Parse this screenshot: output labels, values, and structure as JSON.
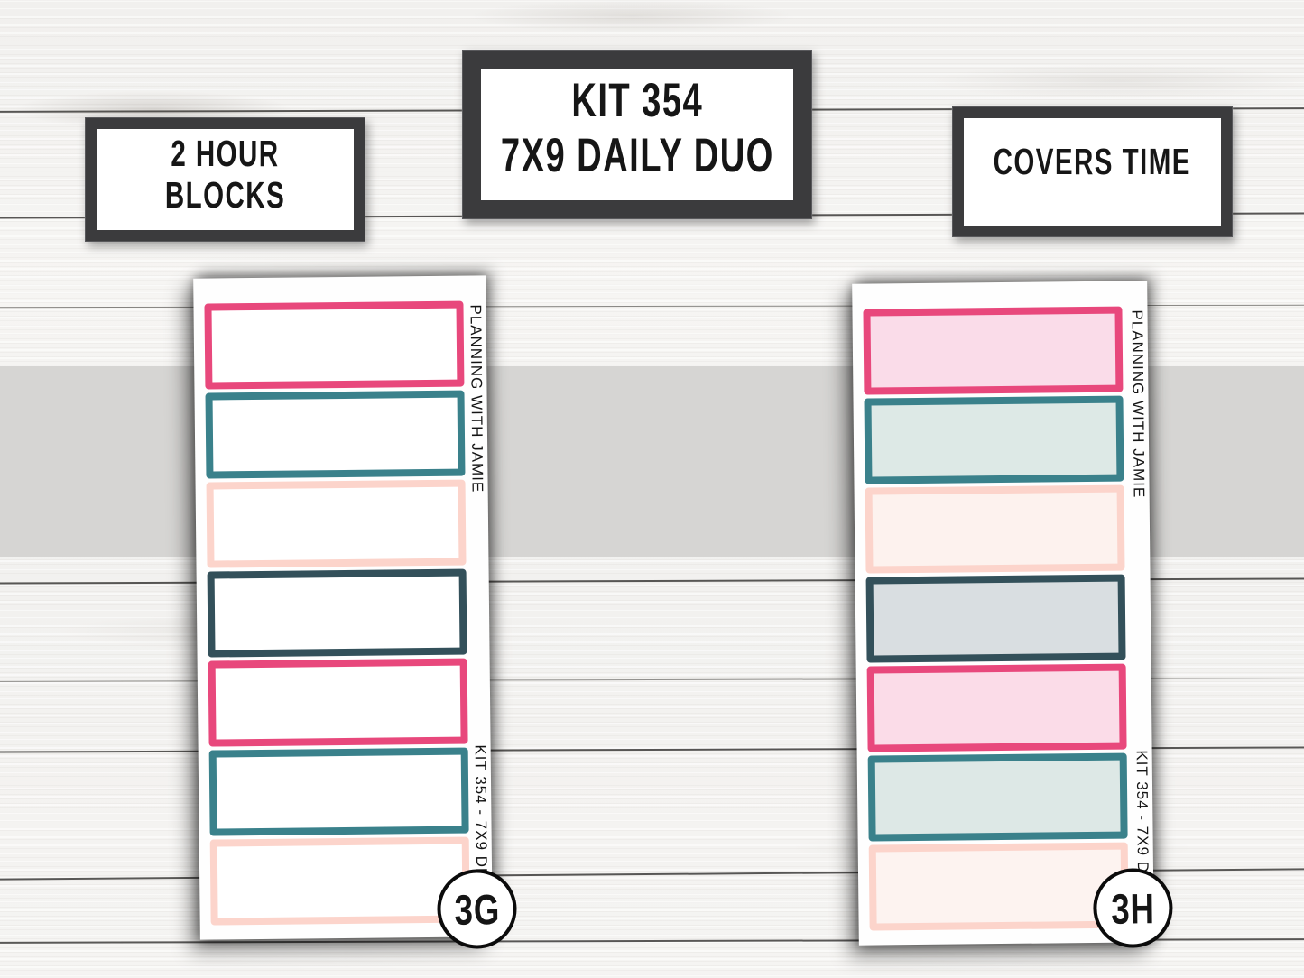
{
  "signs": {
    "left": {
      "line1": "2 HOUR",
      "line2": "BLOCKS"
    },
    "center": {
      "line1": "KIT 354",
      "line2": "7X9 DAILY DUO"
    },
    "right": {
      "line1": "COVERS TIME"
    }
  },
  "palette": {
    "pink": "#e8487c",
    "teal": "#3a818b",
    "peach": "#fcd4cb",
    "slate": "#33505a",
    "gray_band": "#d6d5d3",
    "frame_dark": "#3b3b3d"
  },
  "sheets": [
    {
      "badge": "3G",
      "brand_text": "PLANNING WITH JAMIE",
      "kit_text": "KIT 354 - 7X9 DD",
      "boxes": [
        {
          "border": "#e8487c",
          "fill": "#ffffff"
        },
        {
          "border": "#3a818b",
          "fill": "#ffffff"
        },
        {
          "border": "#fcd4cb",
          "fill": "#ffffff"
        },
        {
          "border": "#33505a",
          "fill": "#ffffff"
        },
        {
          "border": "#e8487c",
          "fill": "#ffffff"
        },
        {
          "border": "#3a818b",
          "fill": "#ffffff"
        },
        {
          "border": "#fcd4cb",
          "fill": "#ffffff"
        }
      ]
    },
    {
      "badge": "3H",
      "brand_text": "PLANNING WITH JAMIE",
      "kit_text": "KIT 354 - 7X9 DD",
      "boxes": [
        {
          "border": "#e8487c",
          "fill": "#fadce9"
        },
        {
          "border": "#3a818b",
          "fill": "#dde9e6"
        },
        {
          "border": "#fcd4cb",
          "fill": "#fdf2ee"
        },
        {
          "border": "#33505a",
          "fill": "#d9dee1"
        },
        {
          "border": "#e8487c",
          "fill": "#fbdce8"
        },
        {
          "border": "#3a818b",
          "fill": "#dde8e6"
        },
        {
          "border": "#fcd4cb",
          "fill": "#fdf3f0"
        }
      ]
    }
  ]
}
